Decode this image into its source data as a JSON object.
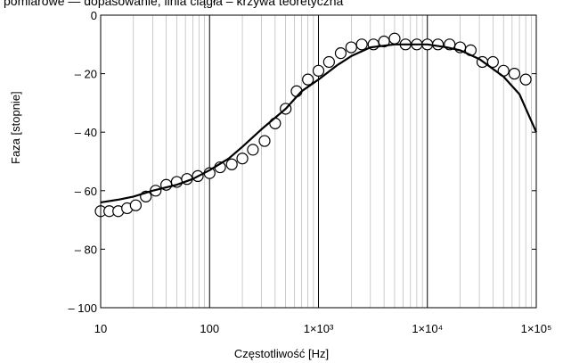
{
  "top_text": "pomiarowe  — dopasowanie, linia ciągła – krzywa teoretyczna",
  "chart_data": {
    "type": "scatter",
    "title": "",
    "xlabel": "Częstotliwość [Hz]",
    "ylabel": "Faza [stopnie]",
    "x_scale": "log",
    "xlim": [
      10,
      100000
    ],
    "ylim": [
      -100,
      0
    ],
    "x_ticks": [
      10,
      100,
      1000,
      10000,
      100000
    ],
    "x_tick_labels": [
      "10",
      "100",
      "1×10³",
      "1×10⁴",
      "1×10⁵"
    ],
    "y_ticks": [
      0,
      -20,
      -40,
      -60,
      -80,
      -100
    ],
    "y_tick_labels": [
      "0",
      "– 20",
      "– 40",
      "– 60",
      "– 80",
      "– 100"
    ],
    "grid": "vertical-log",
    "series": [
      {
        "style": "markers-open-circle",
        "color": "#000000",
        "x": [
          10,
          12,
          14.5,
          17.5,
          21,
          26,
          32,
          40,
          50,
          62,
          78,
          100,
          125,
          160,
          200,
          250,
          320,
          400,
          500,
          630,
          800,
          1000,
          1250,
          1600,
          2000,
          2500,
          3200,
          4000,
          5000,
          6300,
          8000,
          10000,
          12500,
          16000,
          20000,
          25000,
          32000,
          40000,
          50000,
          63000,
          80000
        ],
        "y": [
          -67,
          -67,
          -67,
          -66,
          -65,
          -62,
          -60,
          -58,
          -57,
          -56,
          -55,
          -54,
          -52,
          -51,
          -49,
          -46,
          -43,
          -37,
          -32,
          -26,
          -22,
          -19,
          -16,
          -13,
          -11,
          -10,
          -10,
          -9,
          -8,
          -10,
          -10,
          -10,
          -10,
          -10,
          -11,
          -12,
          -16,
          -16,
          -19,
          -20,
          -22
        ]
      },
      {
        "style": "line",
        "color": "#000000",
        "x": [
          10,
          15,
          20,
          30,
          50,
          70,
          100,
          150,
          200,
          300,
          500,
          700,
          1000,
          1500,
          2000,
          3000,
          5000,
          7000,
          10000,
          15000,
          20000,
          30000,
          50000,
          70000,
          100000
        ],
        "y": [
          -64,
          -63,
          -62,
          -60,
          -58,
          -56,
          -53,
          -49,
          -45,
          -39,
          -32,
          -26,
          -22,
          -17,
          -14,
          -11,
          -10,
          -10,
          -10,
          -11,
          -12,
          -15,
          -21,
          -27,
          -40
        ]
      }
    ]
  }
}
